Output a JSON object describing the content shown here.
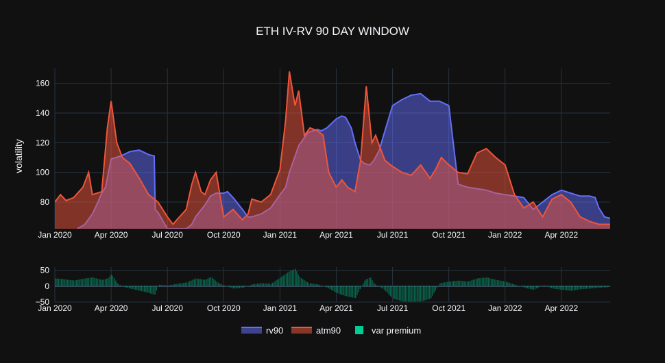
{
  "chart_data": {
    "title": "ETH IV-RV 90 DAY WINDOW",
    "colors": {
      "background": "#111111",
      "grid": "#283442",
      "rv90": "#636efa",
      "atm90": "#ef553b",
      "premium": "#00cc96",
      "text": "#f2f5fa"
    },
    "x_ticks": [
      "Jan 2020",
      "Apr 2020",
      "Jul 2020",
      "Oct 2020",
      "Jan 2021",
      "Apr 2021",
      "Jul 2021",
      "Oct 2021",
      "Jan 2022",
      "Apr 2022"
    ],
    "x_tick_months": [
      0,
      3,
      6,
      9,
      12,
      15,
      18,
      21,
      24,
      27
    ],
    "x_range_months": [
      0,
      29.6
    ],
    "charts": [
      {
        "id": "top",
        "type": "area",
        "ylabel": "volatility",
        "ylim": [
          62,
          170
        ],
        "y_ticks": [
          80,
          100,
          120,
          140,
          160
        ],
        "series": [
          {
            "name": "rv90",
            "color": "#636efa",
            "x": [
              1.2,
              1.6,
              2.0,
              2.3,
              2.5,
              2.7,
              3.0,
              3.5,
              4.0,
              4.5,
              5.0,
              5.3,
              5.35,
              5.5,
              6.0,
              6.5,
              7.0,
              7.3,
              7.5,
              8.0,
              8.3,
              8.6,
              9.0,
              9.2,
              9.5,
              10.0,
              10.3,
              10.5,
              11.0,
              11.5,
              12.0,
              12.3,
              12.5,
              13.0,
              13.5,
              14.0,
              14.2,
              14.5,
              15.0,
              15.3,
              15.5,
              15.8,
              16.0,
              16.3,
              16.5,
              16.8,
              17.0,
              17.3,
              17.5,
              18.0,
              18.5,
              19.0,
              19.5,
              19.6,
              19.8,
              20.0,
              20.5,
              21.0,
              21.5,
              22.0,
              22.5,
              23.0,
              23.5,
              24.0,
              24.5,
              25.0,
              25.5,
              26.0,
              26.5,
              27.0,
              27.5,
              28.0,
              28.5,
              28.8,
              29.0,
              29.3,
              29.6
            ],
            "values": [
              62,
              65,
              72,
              80,
              86,
              90,
              109,
              111,
              114,
              115,
              112,
              111,
              75,
              73,
              62,
              62,
              62,
              65,
              70,
              78,
              84,
              86,
              86,
              87,
              83,
              75,
              70,
              70,
              72,
              76,
              85,
              90,
              100,
              118,
              127,
              129,
              128,
              130,
              136,
              138,
              137,
              130,
              120,
              108,
              106,
              105,
              108,
              115,
              124,
              145,
              149,
              152,
              153,
              152,
              150,
              148,
              148,
              145,
              92,
              90,
              89,
              88,
              86,
              85,
              84,
              83,
              75,
              80,
              85,
              88,
              86,
              84,
              84,
              83,
              76,
              70,
              69
            ]
          },
          {
            "name": "atm90",
            "color": "#ef553b",
            "x": [
              0.0,
              0.3,
              0.6,
              1.0,
              1.5,
              1.8,
              2.0,
              2.5,
              2.8,
              3.0,
              3.3,
              3.6,
              4.0,
              4.5,
              5.0,
              5.5,
              6.0,
              6.3,
              6.5,
              7.0,
              7.3,
              7.5,
              7.8,
              8.0,
              8.3,
              8.6,
              9.0,
              9.5,
              10.0,
              10.3,
              10.5,
              11.0,
              11.5,
              12.0,
              12.3,
              12.5,
              12.8,
              13.0,
              13.3,
              13.6,
              14.0,
              14.3,
              14.6,
              15.0,
              15.3,
              15.6,
              16.0,
              16.3,
              16.6,
              16.9,
              17.1,
              17.3,
              17.6,
              18.0,
              18.5,
              19.0,
              19.5,
              20.0,
              20.3,
              20.6,
              21.0,
              21.5,
              22.0,
              22.5,
              23.0,
              23.5,
              24.0,
              24.5,
              25.0,
              25.5,
              26.0,
              26.5,
              27.0,
              27.5,
              28.0,
              28.5,
              29.0,
              29.6
            ],
            "values": [
              80,
              85,
              81,
              83,
              90,
              100,
              85,
              87,
              130,
              148,
              120,
              110,
              106,
              96,
              85,
              80,
              70,
              65,
              68,
              75,
              92,
              100,
              87,
              85,
              95,
              100,
              70,
              75,
              68,
              72,
              82,
              80,
              85,
              102,
              135,
              168,
              145,
              155,
              125,
              130,
              128,
              125,
              100,
              90,
              95,
              90,
              87,
              108,
              158,
              120,
              125,
              118,
              108,
              104,
              100,
              98,
              105,
              96,
              102,
              110,
              105,
              100,
              99,
              113,
              116,
              110,
              105,
              85,
              76,
              80,
              70,
              82,
              85,
              80,
              70,
              67,
              65,
              65
            ]
          }
        ]
      },
      {
        "id": "bottom",
        "type": "bar",
        "ylim": [
          -50,
          60
        ],
        "y_ticks": [
          -50,
          0,
          50
        ],
        "series": [
          {
            "name": "var premium",
            "color": "#00cc96",
            "x": [
              0.0,
              0.5,
              1.0,
              1.5,
              2.0,
              2.5,
              2.8,
              3.0,
              3.3,
              3.6,
              4.0,
              4.5,
              5.0,
              5.3,
              5.5,
              6.0,
              6.5,
              7.0,
              7.5,
              8.0,
              8.3,
              8.6,
              9.0,
              9.5,
              10.0,
              10.5,
              11.0,
              11.5,
              12.0,
              12.5,
              12.8,
              13.0,
              13.5,
              14.0,
              14.5,
              15.0,
              15.5,
              16.0,
              16.5,
              16.8,
              17.0,
              17.5,
              18.0,
              18.5,
              19.0,
              19.5,
              20.0,
              20.5,
              21.0,
              21.5,
              22.0,
              22.5,
              23.0,
              23.5,
              24.0,
              24.5,
              25.0,
              25.5,
              26.0,
              26.5,
              27.0,
              27.5,
              28.0,
              28.5,
              29.0,
              29.6
            ],
            "values": [
              25,
              22,
              18,
              24,
              28,
              20,
              25,
              38,
              10,
              -2,
              -8,
              -15,
              -22,
              -28,
              5,
              2,
              8,
              12,
              25,
              20,
              30,
              14,
              2,
              -8,
              -5,
              6,
              10,
              8,
              28,
              48,
              55,
              30,
              10,
              6,
              -5,
              -22,
              -32,
              -38,
              20,
              28,
              8,
              -10,
              -40,
              -48,
              -50,
              -48,
              -40,
              10,
              15,
              18,
              15,
              25,
              28,
              20,
              15,
              5,
              -5,
              -12,
              3,
              -8,
              -12,
              -15,
              -10,
              -8,
              -5,
              -3
            ]
          }
        ]
      }
    ],
    "legend": {
      "placement": "bottom-center",
      "items": [
        "rv90",
        "atm90",
        "var premium"
      ]
    }
  }
}
